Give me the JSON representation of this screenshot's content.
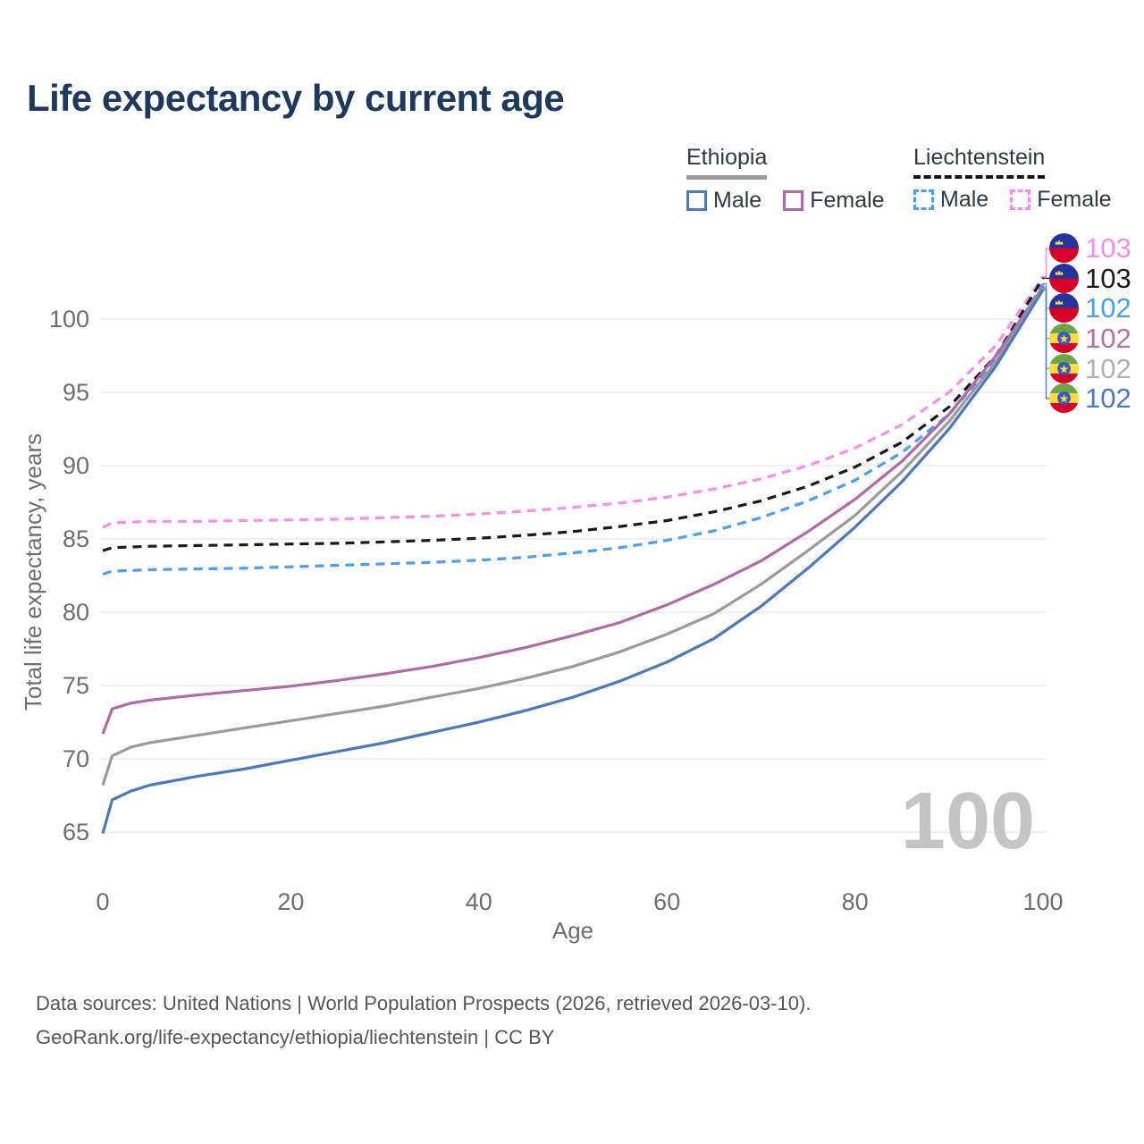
{
  "title": "Life expectancy by current age",
  "title_color": "#1d3a5e",
  "watermark": "100",
  "legend": {
    "groups": [
      {
        "name": "Ethiopia",
        "underline_style": "solid",
        "underline_color": "#9b9b9b",
        "items": [
          {
            "label": "Male",
            "style": "solid",
            "color": "#4a79be"
          },
          {
            "label": "Female",
            "style": "solid",
            "color": "#b06aa8"
          }
        ]
      },
      {
        "name": "Liechtenstein",
        "underline_style": "dashed",
        "underline_color": "#151515",
        "items": [
          {
            "label": "Male",
            "style": "dashed",
            "color": "#49a0f3"
          },
          {
            "label": "Female",
            "style": "dashed",
            "color": "#fa8cf0"
          }
        ]
      }
    ]
  },
  "chart_data": {
    "type": "line",
    "title": "Life expectancy by current age",
    "xlabel": "Age",
    "ylabel": "Total life expectancy, years",
    "xlim": [
      0,
      100
    ],
    "ylim": [
      63,
      104
    ],
    "x_ticks": [
      0,
      20,
      40,
      60,
      80,
      100
    ],
    "y_ticks": [
      65,
      70,
      75,
      80,
      85,
      90,
      95,
      100
    ],
    "grid": "horizontal-only",
    "legend_position": "top-right",
    "axis_text_color": "#6e6e6e",
    "gridline_color": "#e7e7e7",
    "watermark_color": "#c5c5c5",
    "series": [
      {
        "name": "Liechtenstein Female",
        "country": "Liechtenstein",
        "sex": "Female",
        "style": "dashed",
        "color": "#fa8cf0",
        "label_color": "#fa8cf0",
        "flag": "liechtenstein",
        "end_label": "103",
        "points": [
          [
            0,
            85.8
          ],
          [
            1,
            86.1
          ],
          [
            3,
            86.15
          ],
          [
            5,
            86.2
          ],
          [
            10,
            86.2
          ],
          [
            15,
            86.25
          ],
          [
            20,
            86.3
          ],
          [
            25,
            86.35
          ],
          [
            30,
            86.45
          ],
          [
            35,
            86.55
          ],
          [
            40,
            86.7
          ],
          [
            45,
            86.9
          ],
          [
            50,
            87.15
          ],
          [
            55,
            87.45
          ],
          [
            60,
            87.85
          ],
          [
            65,
            88.4
          ],
          [
            70,
            89.1
          ],
          [
            75,
            90.0
          ],
          [
            80,
            91.2
          ],
          [
            85,
            92.8
          ],
          [
            90,
            95.0
          ],
          [
            95,
            98.2
          ],
          [
            100,
            102.9
          ]
        ]
      },
      {
        "name": "Liechtenstein",
        "country": "Liechtenstein",
        "sex": "Both",
        "style": "dashed",
        "color": "#1a1a1a",
        "label_color": "#1a1a1a",
        "flag": "liechtenstein",
        "end_label": "103",
        "points": [
          [
            0,
            84.2
          ],
          [
            1,
            84.4
          ],
          [
            3,
            84.45
          ],
          [
            5,
            84.5
          ],
          [
            10,
            84.55
          ],
          [
            15,
            84.6
          ],
          [
            20,
            84.65
          ],
          [
            25,
            84.7
          ],
          [
            30,
            84.8
          ],
          [
            35,
            84.9
          ],
          [
            40,
            85.05
          ],
          [
            45,
            85.25
          ],
          [
            50,
            85.5
          ],
          [
            55,
            85.85
          ],
          [
            60,
            86.25
          ],
          [
            65,
            86.85
          ],
          [
            70,
            87.6
          ],
          [
            75,
            88.6
          ],
          [
            80,
            89.9
          ],
          [
            85,
            91.6
          ],
          [
            90,
            94.0
          ],
          [
            95,
            97.5
          ],
          [
            100,
            102.8
          ]
        ]
      },
      {
        "name": "Liechtenstein Male",
        "country": "Liechtenstein",
        "sex": "Male",
        "style": "dashed",
        "color": "#49a0f3",
        "label_color": "#49a0f3",
        "flag": "liechtenstein",
        "end_label": "102",
        "points": [
          [
            0,
            82.6
          ],
          [
            1,
            82.8
          ],
          [
            3,
            82.85
          ],
          [
            5,
            82.9
          ],
          [
            10,
            82.95
          ],
          [
            15,
            83.0
          ],
          [
            20,
            83.1
          ],
          [
            25,
            83.2
          ],
          [
            30,
            83.3
          ],
          [
            35,
            83.4
          ],
          [
            40,
            83.55
          ],
          [
            45,
            83.75
          ],
          [
            50,
            84.05
          ],
          [
            55,
            84.4
          ],
          [
            60,
            84.9
          ],
          [
            65,
            85.55
          ],
          [
            70,
            86.45
          ],
          [
            75,
            87.6
          ],
          [
            80,
            89.0
          ],
          [
            85,
            90.9
          ],
          [
            90,
            93.5
          ],
          [
            95,
            97.2
          ],
          [
            100,
            102.4
          ]
        ]
      },
      {
        "name": "Ethiopia Female",
        "country": "Ethiopia",
        "sex": "Female",
        "style": "solid",
        "color": "#b06aa8",
        "label_color": "#b472ab",
        "flag": "ethiopia",
        "end_label": "102",
        "points": [
          [
            0,
            71.7
          ],
          [
            1,
            73.4
          ],
          [
            3,
            73.8
          ],
          [
            5,
            74.0
          ],
          [
            10,
            74.35
          ],
          [
            15,
            74.65
          ],
          [
            20,
            74.95
          ],
          [
            25,
            75.35
          ],
          [
            30,
            75.8
          ],
          [
            35,
            76.3
          ],
          [
            40,
            76.9
          ],
          [
            45,
            77.6
          ],
          [
            50,
            78.4
          ],
          [
            55,
            79.3
          ],
          [
            60,
            80.5
          ],
          [
            65,
            81.9
          ],
          [
            70,
            83.5
          ],
          [
            75,
            85.5
          ],
          [
            80,
            87.7
          ],
          [
            85,
            90.3
          ],
          [
            90,
            93.5
          ],
          [
            95,
            97.5
          ],
          [
            100,
            102.2
          ]
        ]
      },
      {
        "name": "Ethiopia",
        "country": "Ethiopia",
        "sex": "Both",
        "style": "solid",
        "color": "#9b9b9b",
        "label_color": "#b1b1b1",
        "flag": "ethiopia",
        "end_label": "102",
        "points": [
          [
            0,
            68.2
          ],
          [
            1,
            70.2
          ],
          [
            3,
            70.8
          ],
          [
            5,
            71.1
          ],
          [
            10,
            71.6
          ],
          [
            15,
            72.1
          ],
          [
            20,
            72.6
          ],
          [
            25,
            73.1
          ],
          [
            30,
            73.6
          ],
          [
            35,
            74.2
          ],
          [
            40,
            74.8
          ],
          [
            45,
            75.5
          ],
          [
            50,
            76.3
          ],
          [
            55,
            77.3
          ],
          [
            60,
            78.5
          ],
          [
            65,
            79.9
          ],
          [
            70,
            81.9
          ],
          [
            75,
            84.2
          ],
          [
            80,
            86.6
          ],
          [
            85,
            89.6
          ],
          [
            90,
            93.0
          ],
          [
            95,
            97.1
          ],
          [
            100,
            102.1
          ]
        ]
      },
      {
        "name": "Ethiopia Male",
        "country": "Ethiopia",
        "sex": "Male",
        "style": "solid",
        "color": "#4a79be",
        "label_color": "#4a79be",
        "flag": "ethiopia",
        "end_label": "102",
        "points": [
          [
            0,
            64.9
          ],
          [
            1,
            67.2
          ],
          [
            3,
            67.8
          ],
          [
            5,
            68.2
          ],
          [
            10,
            68.8
          ],
          [
            15,
            69.3
          ],
          [
            20,
            69.9
          ],
          [
            25,
            70.5
          ],
          [
            30,
            71.1
          ],
          [
            35,
            71.8
          ],
          [
            40,
            72.5
          ],
          [
            45,
            73.3
          ],
          [
            50,
            74.2
          ],
          [
            55,
            75.3
          ],
          [
            60,
            76.6
          ],
          [
            65,
            78.2
          ],
          [
            70,
            80.4
          ],
          [
            75,
            83.0
          ],
          [
            80,
            85.8
          ],
          [
            85,
            88.9
          ],
          [
            90,
            92.5
          ],
          [
            95,
            96.8
          ],
          [
            100,
            102.0
          ]
        ]
      }
    ]
  },
  "footer": {
    "line1": "Data sources: United Nations | World Population Prospects (2026, retrieved 2026-03-10).",
    "line2": "GeoRank.org/life-expectancy/ethiopia/liechtenstein | CC BY"
  }
}
